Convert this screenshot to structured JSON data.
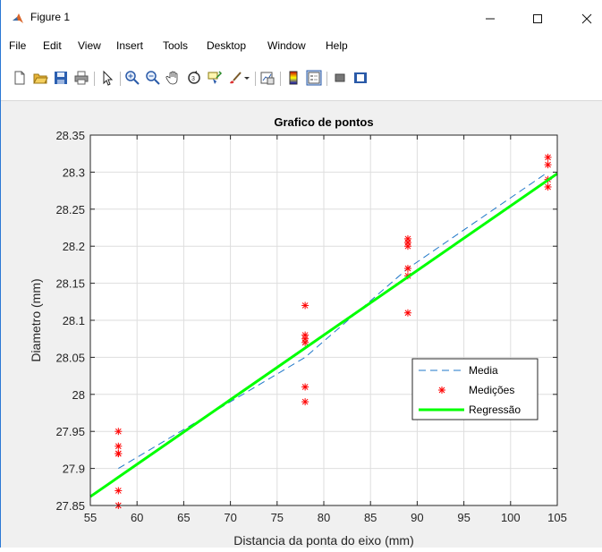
{
  "window": {
    "title": "Figure 1",
    "controls": {
      "minimize": "—",
      "maximize": "☐",
      "close": "✕"
    }
  },
  "menubar": {
    "items": [
      "File",
      "Edit",
      "View",
      "Insert",
      "Tools",
      "Desktop",
      "Window",
      "Help"
    ]
  },
  "toolbar": {
    "icons": [
      "new-figure-icon",
      "open-file-icon",
      "save-icon",
      "print-icon",
      "pointer-icon",
      "zoom-in-icon",
      "zoom-out-icon",
      "pan-hand-icon",
      "rotate-3d-icon",
      "data-cursor-icon",
      "brush-icon",
      "link-plot-icon",
      "insert-colorbar-icon",
      "insert-legend-icon",
      "hide-plot-tools-icon",
      "show-plot-tools-icon"
    ]
  },
  "chart_data": {
    "type": "scatter",
    "title": "Grafico de pontos",
    "xlabel": "Distancia da ponta do eixo (mm)",
    "ylabel": "Diametro (mm)",
    "xlim": [
      55,
      105
    ],
    "ylim": [
      27.85,
      28.35
    ],
    "xticks": [
      55,
      60,
      65,
      70,
      75,
      80,
      85,
      90,
      95,
      100,
      105
    ],
    "yticks": [
      27.85,
      27.9,
      27.95,
      28,
      28.05,
      28.1,
      28.15,
      28.2,
      28.25,
      28.3,
      28.35
    ],
    "xtick_labels": [
      "55",
      "60",
      "65",
      "70",
      "75",
      "80",
      "85",
      "90",
      "95",
      "100",
      "105"
    ],
    "ytick_labels": [
      "27.85",
      "27.9",
      "27.95",
      "28",
      "28.05",
      "28.1",
      "28.15",
      "28.2",
      "28.25",
      "28.3",
      "28.35"
    ],
    "grid": true,
    "legend_position": "bottom-right",
    "series": [
      {
        "name": "Media",
        "style": "dashed-line",
        "color": "#1f77c8",
        "x": [
          58,
          78,
          89,
          104
        ],
        "y": [
          27.9,
          28.05,
          28.17,
          28.3
        ]
      },
      {
        "name": "Medições",
        "style": "asterisk-markers",
        "color": "#ff0000",
        "x": [
          58,
          58,
          58,
          58,
          58,
          58,
          78,
          78,
          78,
          78,
          78,
          78,
          89,
          89,
          89,
          89,
          89,
          89,
          104,
          104,
          104,
          104
        ],
        "y": [
          27.95,
          27.93,
          27.92,
          27.87,
          27.85,
          27.92,
          28.12,
          28.08,
          28.07,
          28.01,
          27.99,
          28.075,
          28.21,
          28.2,
          28.17,
          28.16,
          28.11,
          28.205,
          28.32,
          28.31,
          28.29,
          28.28
        ]
      },
      {
        "name": "Regressão",
        "style": "solid-line",
        "color": "#00ff00",
        "x": [
          55,
          105
        ],
        "y": [
          27.862,
          28.298
        ]
      }
    ]
  }
}
